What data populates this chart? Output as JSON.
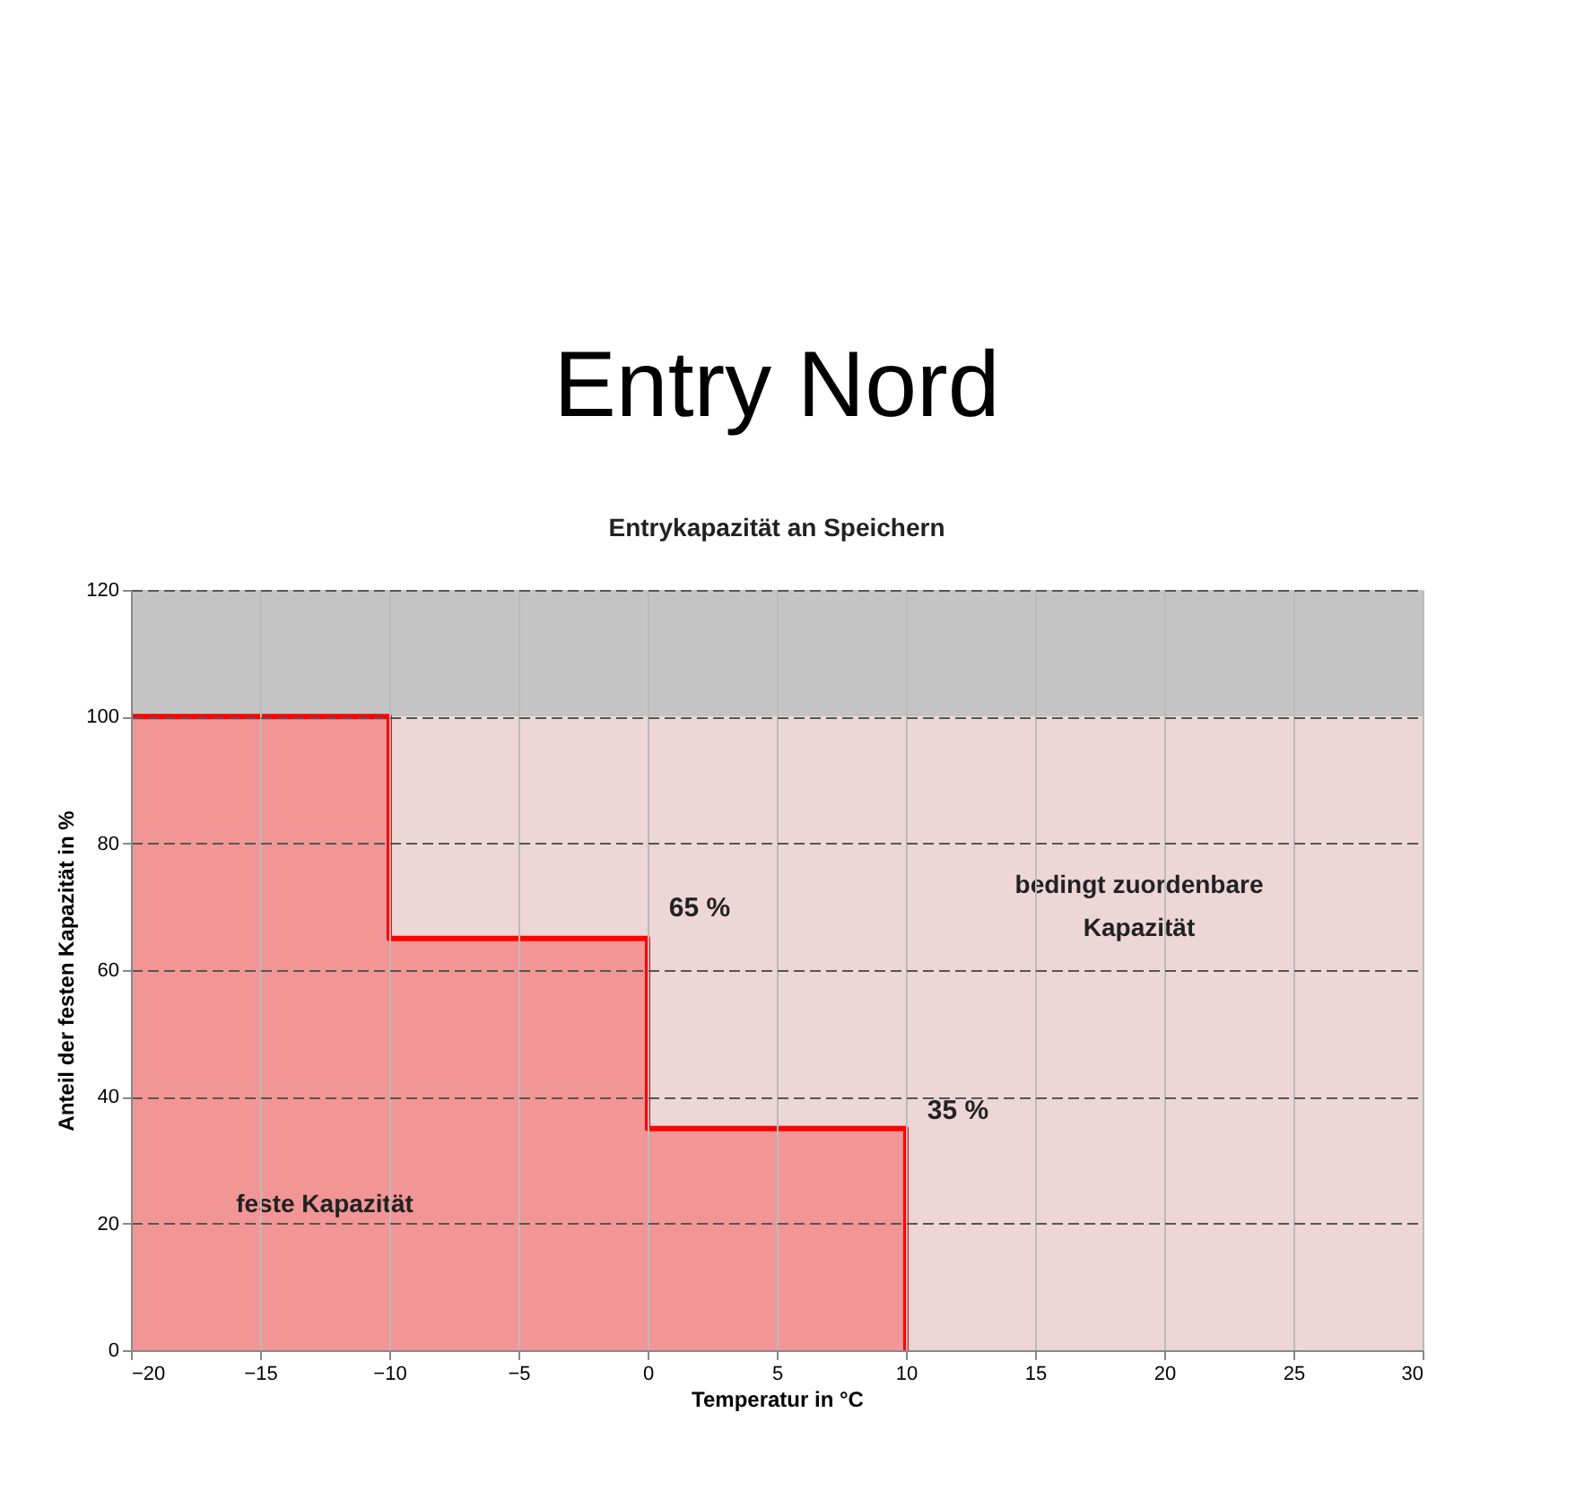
{
  "chart_data": {
    "type": "step",
    "title": "Entry Nord",
    "subtitle": "Entrykapazität an Speichern",
    "xlabel": "Temperatur in °C",
    "ylabel": "Anteil der festen Kapazität in %",
    "series": [
      {
        "x": [
          -20,
          -10,
          0,
          10
        ],
        "values": [
          100,
          65,
          35,
          0
        ],
        "color": "#ff0000"
      }
    ],
    "xlim": [
      -20,
      30
    ],
    "xticks": [
      -20,
      -15,
      -10,
      -5,
      0,
      5,
      10,
      15,
      20,
      25,
      30
    ],
    "ylim": [
      0,
      120
    ],
    "yticks": [
      0,
      20,
      40,
      60,
      80,
      100,
      120
    ],
    "bands": [
      {
        "axis": "y",
        "from": 100,
        "to": 120,
        "color": "#c4c4c4"
      },
      {
        "axis": "y",
        "from": 0,
        "to": 100,
        "color": "#ecd6d6"
      }
    ],
    "annotations": [
      "65 %",
      "35 %",
      "feste Kapazität",
      "bedingt zuordenbare\nKapazität"
    ],
    "grid": true,
    "line_style": "solid"
  }
}
